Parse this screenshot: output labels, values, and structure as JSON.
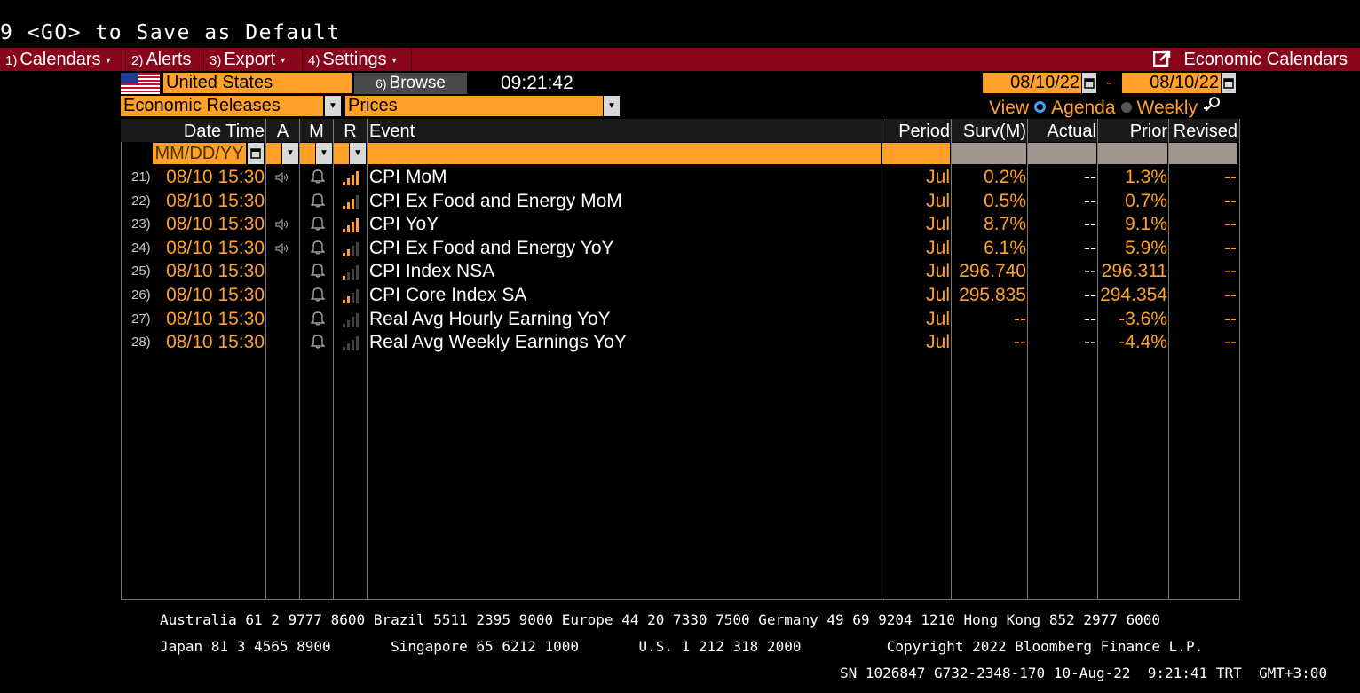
{
  "command_line": "9 <GO> to Save as Default",
  "menubar": {
    "items": [
      {
        "num": "1)",
        "label": "Calendars",
        "caret": "▾"
      },
      {
        "num": "2)",
        "label": "Alerts",
        "caret": ""
      },
      {
        "num": "3)",
        "label": "Export",
        "caret": "▾"
      },
      {
        "num": "4)",
        "label": "Settings",
        "caret": "▾"
      }
    ],
    "title": "Economic Calendars"
  },
  "toolbar": {
    "country": "United States",
    "browse_num": "6)",
    "browse_label": "Browse",
    "time": "09:21:42",
    "date_start": "08/10/22",
    "date_sep": "-",
    "date_end": "08/10/22",
    "filter1": "Economic Releases",
    "filter2": "Prices",
    "view_label": "View",
    "agenda_label": "Agenda",
    "weekly_label": "Weekly"
  },
  "table": {
    "headers": {
      "datetime": "Date Time",
      "a": "A",
      "m": "M",
      "r": "R",
      "event": "Event",
      "period": "Period",
      "surv": "Surv(M)",
      "actual": "Actual",
      "prior": "Prior",
      "revised": "Revised"
    },
    "date_filter_placeholder": "MM/DD/YY",
    "rows": [
      {
        "num": "21)",
        "datetime": "08/10 15:30",
        "audio": true,
        "relevance": 4,
        "event": "CPI MoM",
        "period": "Jul",
        "surv": "0.2%",
        "actual": "--",
        "prior": "1.3%",
        "revised": "--"
      },
      {
        "num": "22)",
        "datetime": "08/10 15:30",
        "audio": false,
        "relevance": 3,
        "event": "CPI Ex Food and Energy MoM",
        "period": "Jul",
        "surv": "0.5%",
        "actual": "--",
        "prior": "0.7%",
        "revised": "--"
      },
      {
        "num": "23)",
        "datetime": "08/10 15:30",
        "audio": true,
        "relevance": 4,
        "event": "CPI YoY",
        "period": "Jul",
        "surv": "8.7%",
        "actual": "--",
        "prior": "9.1%",
        "revised": "--"
      },
      {
        "num": "24)",
        "datetime": "08/10 15:30",
        "audio": true,
        "relevance": 2,
        "event": "CPI Ex Food and Energy YoY",
        "period": "Jul",
        "surv": "6.1%",
        "actual": "--",
        "prior": "5.9%",
        "revised": "--"
      },
      {
        "num": "25)",
        "datetime": "08/10 15:30",
        "audio": false,
        "relevance": 1,
        "event": "CPI Index NSA",
        "period": "Jul",
        "surv": "296.740",
        "actual": "--",
        "prior": "296.311",
        "revised": "--"
      },
      {
        "num": "26)",
        "datetime": "08/10 15:30",
        "audio": false,
        "relevance": 2,
        "event": "CPI Core Index SA",
        "period": "Jul",
        "surv": "295.835",
        "actual": "--",
        "prior": "294.354",
        "revised": "--"
      },
      {
        "num": "27)",
        "datetime": "08/10 15:30",
        "audio": false,
        "relevance": 0,
        "event": "Real Avg Hourly Earning YoY",
        "period": "Jul",
        "surv": "--",
        "actual": "--",
        "prior": "-3.6%",
        "revised": "--"
      },
      {
        "num": "28)",
        "datetime": "08/10 15:30",
        "audio": false,
        "relevance": 0,
        "event": "Real Avg Weekly Earnings YoY",
        "period": "Jul",
        "surv": "--",
        "actual": "--",
        "prior": "-4.4%",
        "revised": "--"
      }
    ]
  },
  "footer": {
    "line1": "Australia 61 2 9777 8600 Brazil 5511 2395 9000 Europe 44 20 7330 7500 Germany 49 69 9204 1210 Hong Kong 852 2977 6000",
    "line2": "Japan 81 3 4565 8900       Singapore 65 6212 1000       U.S. 1 212 318 2000          Copyright 2022 Bloomberg Finance L.P.",
    "line3": "SN 1026847 G732-2348-170 10-Aug-22  9:21:41 TRT  GMT+3:00"
  },
  "colors": {
    "accent": "#ffa028",
    "menubar": "#87061b",
    "background": "#000000"
  }
}
